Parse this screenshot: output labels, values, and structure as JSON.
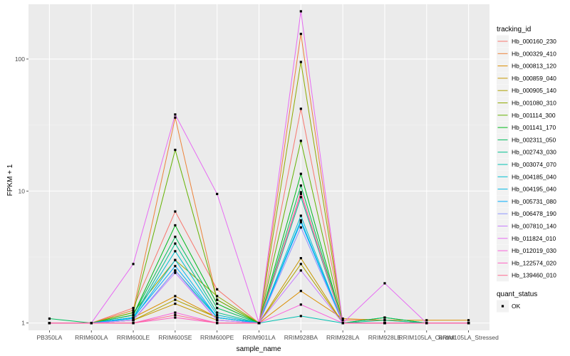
{
  "chart_data": {
    "type": "line",
    "xlabel": "sample_name",
    "ylabel": "FPKM + 1",
    "y_scale": "log10",
    "ylim": [
      0.88,
      260
    ],
    "y_ticks": [
      1,
      10,
      100
    ],
    "y_tick_labels": [
      "1",
      "10",
      "100"
    ],
    "grid": true,
    "categories": [
      "PB350LA",
      "RRIM600LA",
      "RRIM600LE",
      "RRIM600SE",
      "RRIM600PE",
      "RRIM901LA",
      "RRIM928BA",
      "RRIM928LA",
      "RRIM928LE",
      "RRIM105LA_Control",
      "RRIM105LA_Stressed"
    ],
    "legend_position": "right",
    "legend_title": "tracking_id",
    "series": [
      {
        "name": "Hb_000160_230",
        "color": "#F8766D",
        "values": [
          1,
          1,
          1.3,
          7,
          1.8,
          1,
          42,
          1.05,
          1.05,
          1,
          1
        ]
      },
      {
        "name": "Hb_000329_410",
        "color": "#EC8239",
        "values": [
          1,
          1,
          1.25,
          36,
          1.5,
          1,
          155,
          1,
          1,
          1,
          1
        ]
      },
      {
        "name": "Hb_000813_120",
        "color": "#DB8E00",
        "values": [
          1,
          1,
          1.1,
          1.6,
          1.1,
          1,
          1.75,
          1.08,
          1.05,
          1.05,
          1.05
        ]
      },
      {
        "name": "Hb_000859_040",
        "color": "#C79800",
        "values": [
          1,
          1,
          1.05,
          1.4,
          1.05,
          1,
          3.1,
          1,
          1,
          1,
          1
        ]
      },
      {
        "name": "Hb_000905_140",
        "color": "#AEA200",
        "values": [
          1,
          1,
          1.05,
          1.5,
          1.1,
          1,
          2.8,
          1,
          1,
          1,
          1
        ]
      },
      {
        "name": "Hb_001080_310",
        "color": "#8FAA00",
        "values": [
          1,
          1,
          1.2,
          3,
          1.6,
          1,
          95,
          1,
          1,
          1,
          1
        ]
      },
      {
        "name": "Hb_001114_300",
        "color": "#64B200",
        "values": [
          1,
          1,
          1.2,
          20.5,
          1.5,
          1,
          24,
          1,
          1,
          1,
          1
        ]
      },
      {
        "name": "Hb_001141_170",
        "color": "#00B81B",
        "values": [
          1,
          1,
          1.15,
          5.5,
          1.4,
          1,
          13.5,
          1,
          1.1,
          1,
          1
        ]
      },
      {
        "name": "Hb_002311_050",
        "color": "#00BD5C",
        "values": [
          1.08,
          1,
          1.15,
          4.5,
          1.3,
          1,
          11,
          1,
          1.1,
          1,
          1
        ]
      },
      {
        "name": "Hb_002743_030",
        "color": "#00C08E",
        "values": [
          1,
          1,
          1.1,
          4,
          1.2,
          1,
          9,
          1,
          1.05,
          1,
          1
        ]
      },
      {
        "name": "Hb_003074_070",
        "color": "#00C1B2",
        "values": [
          1,
          1,
          1.05,
          2.5,
          1.1,
          1,
          1.13,
          1,
          1,
          1,
          1
        ]
      },
      {
        "name": "Hb_004185_040",
        "color": "#00BFD1",
        "values": [
          1,
          1,
          1.1,
          3.5,
          1.15,
          1,
          6.5,
          1,
          1,
          1,
          1
        ]
      },
      {
        "name": "Hb_004195_040",
        "color": "#00B8E7",
        "values": [
          1,
          1,
          1.08,
          3,
          1.1,
          1,
          6,
          1,
          1,
          1,
          1
        ]
      },
      {
        "name": "Hb_005731_080",
        "color": "#00ACFC",
        "values": [
          1,
          1,
          1.1,
          2.7,
          1.1,
          1,
          5.8,
          1,
          1,
          1,
          1
        ]
      },
      {
        "name": "Hb_006478_190",
        "color": "#8B93FF",
        "values": [
          1,
          1,
          1.05,
          2.5,
          1.05,
          1,
          5.3,
          1,
          1,
          1,
          1
        ]
      },
      {
        "name": "Hb_007810_140",
        "color": "#C77CFF",
        "values": [
          1,
          1,
          1.05,
          2.4,
          1.05,
          1,
          2.5,
          1,
          1,
          1,
          1
        ]
      },
      {
        "name": "Hb_011824_010",
        "color": "#E76BF3",
        "values": [
          1,
          1,
          2.8,
          38,
          9.5,
          1,
          230,
          1,
          2,
          1,
          1
        ]
      },
      {
        "name": "Hb_012019_030",
        "color": "#FA62DB",
        "values": [
          1,
          1,
          1,
          1.2,
          1,
          1,
          1.38,
          1,
          1,
          1,
          1
        ]
      },
      {
        "name": "Hb_122574_020",
        "color": "#FF61C3",
        "values": [
          1,
          1,
          1,
          1.1,
          1,
          1,
          9.5,
          1,
          1,
          1,
          1
        ]
      },
      {
        "name": "Hb_139460_010",
        "color": "#FF6C91",
        "values": [
          1,
          1,
          1,
          1.15,
          1,
          1,
          9.8,
          1,
          1,
          1,
          1
        ]
      }
    ],
    "legend2_title": "quant_status",
    "legend2_items": [
      "OK"
    ]
  }
}
